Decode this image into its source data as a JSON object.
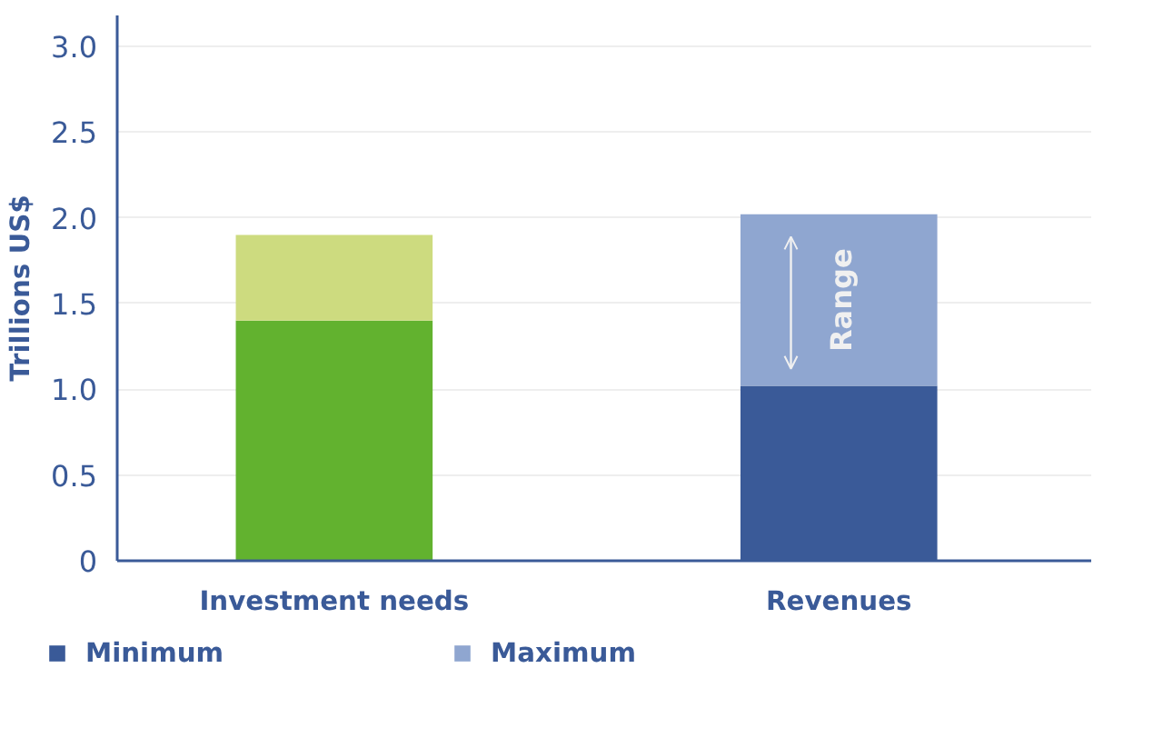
{
  "chart_data": {
    "type": "bar",
    "stacked": true,
    "ylabel": "Trillions US$",
    "categories": [
      "Investment needs",
      "Revenues"
    ],
    "series": [
      {
        "name": "Minimum",
        "color": "#3a5a98",
        "colors": [
          "#62b22f",
          "#3a5a98"
        ],
        "values": [
          1.4,
          1.02
        ]
      },
      {
        "name": "Maximum",
        "color": "#8fa6d0",
        "colors": [
          "#cddb7f",
          "#8fa6d0"
        ],
        "values": [
          0.5,
          1.0
        ]
      }
    ],
    "ylim": [
      0,
      3.18
    ],
    "yticks": [
      0,
      {
        "value": 0.5,
        "label": "0.5"
      },
      {
        "value": 1,
        "label": "1.0"
      },
      {
        "value": 1.5,
        "label": "1.5"
      },
      {
        "value": 2,
        "label": "2.0"
      },
      {
        "value": 2.5,
        "label": "2.5"
      },
      {
        "value": 3,
        "label": "3.0"
      }
    ],
    "grid": "y",
    "legend": "bottom left",
    "annotations": [
      "Range"
    ]
  }
}
